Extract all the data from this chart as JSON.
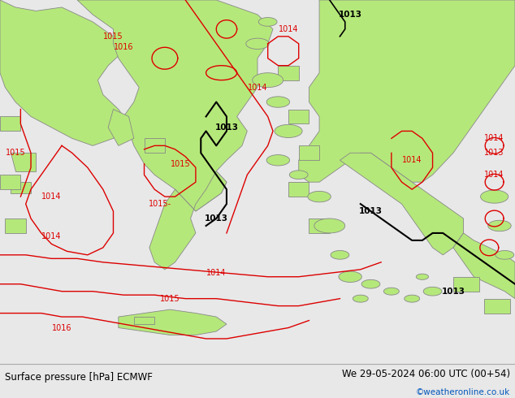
{
  "title_left": "Surface pressure [hPa] ECMWF",
  "title_right": "We 29-05-2024 06:00 UTC (00+54)",
  "watermark": "©weatheronline.co.uk",
  "bg_color": "#e8e8e8",
  "land_color": "#b5e87a",
  "sea_color": "#e0e0e0",
  "coast_color": "#888888",
  "isobar_red": "#dd0000",
  "isobar_black": "#000000",
  "bottom_bg": "#ffffff",
  "text_black": "#000000",
  "text_blue": "#0055bb",
  "figsize": [
    6.34,
    4.9
  ],
  "dpi": 100
}
